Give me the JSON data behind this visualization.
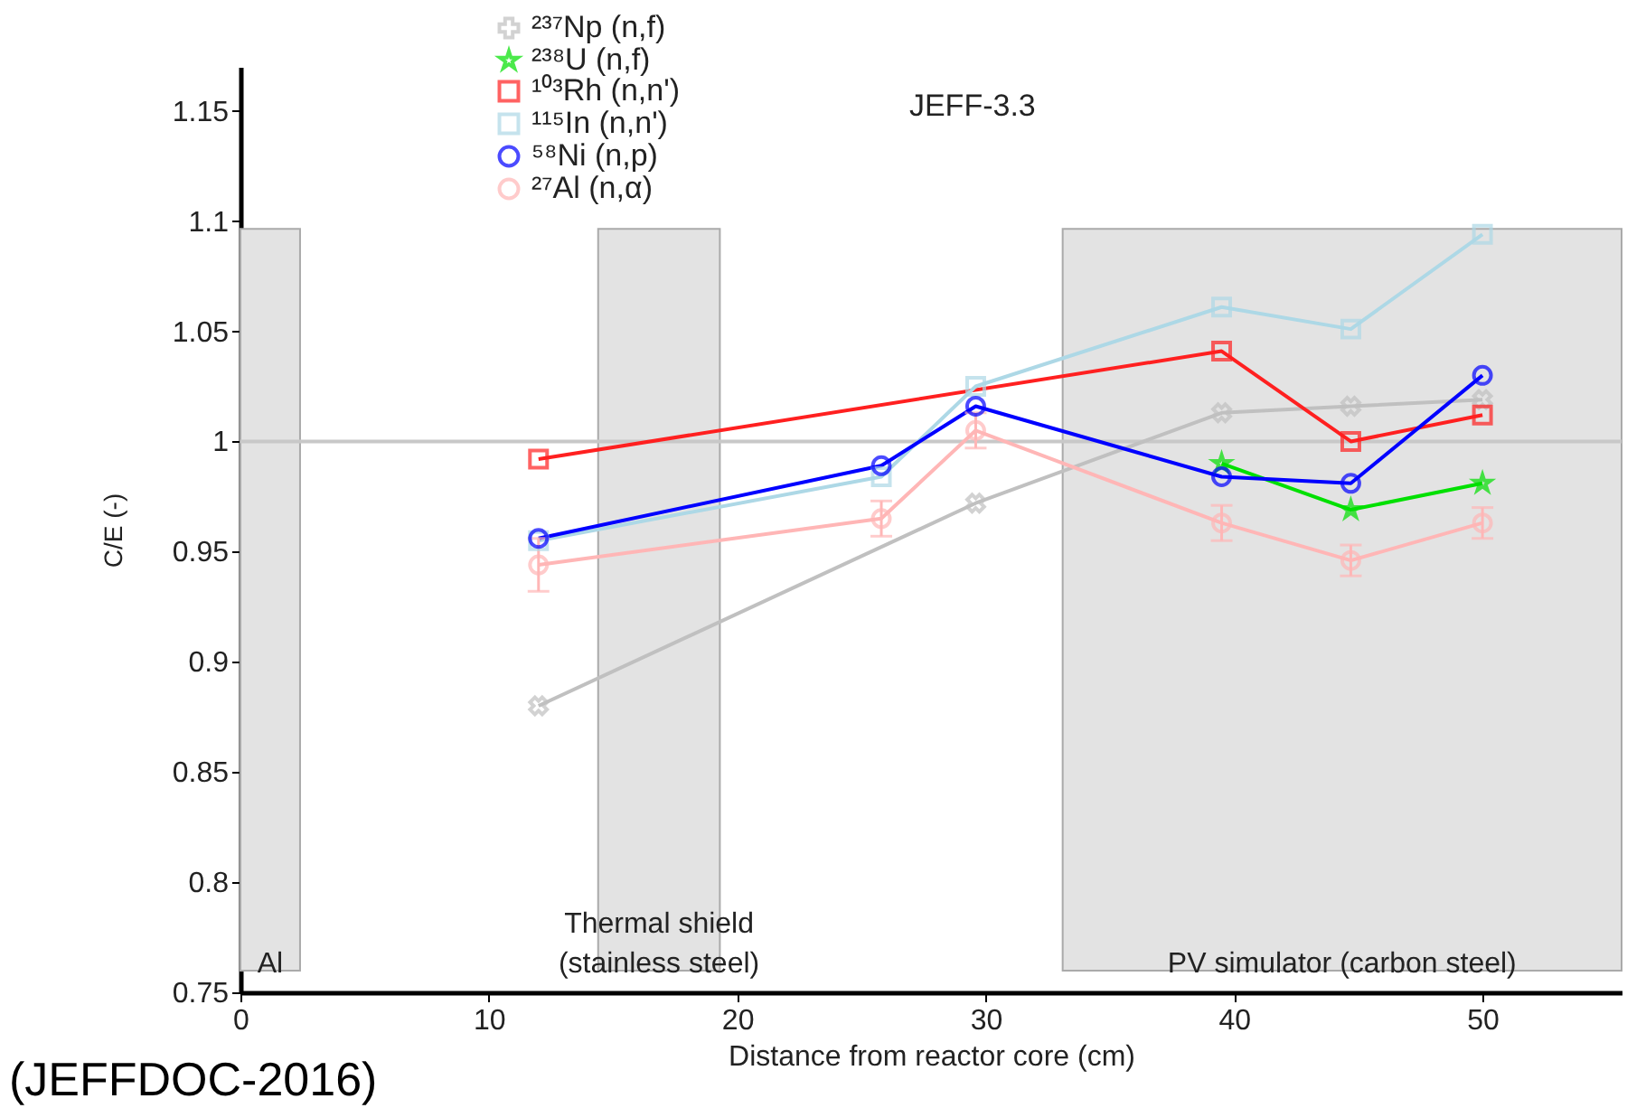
{
  "chart_data": {
    "type": "line",
    "title": "JEFF-3.3",
    "xlabel": "Distance from reactor core (cm)",
    "ylabel": "C/E (-)",
    "xlim": [
      0,
      55.6
    ],
    "xticks": [
      0,
      10,
      20,
      30,
      40,
      50
    ],
    "ylim": [
      0.75,
      1.17
    ],
    "yticks": [
      0.75,
      0.8,
      0.85,
      0.9,
      0.95,
      1,
      1.05,
      1.1,
      1.15
    ],
    "grid": false,
    "legend": "top left",
    "line_style": "solid",
    "series": [
      {
        "name": "²³⁷Np (n,f)",
        "color": "#c0c0c0",
        "marker": "cross",
        "x": [
          12,
          29.6,
          39.5,
          44.7,
          50
        ],
        "values": [
          0.88,
          0.972,
          1.013,
          1.016,
          1.019
        ]
      },
      {
        "name": "²³⁸U (n,f)",
        "color": "#00e000",
        "marker": "star",
        "x": [
          39.5,
          44.7,
          50
        ],
        "values": [
          0.99,
          0.969,
          0.981
        ]
      },
      {
        "name": "¹⁰³Rh (n,n')",
        "color": "#ff2020",
        "marker": "square",
        "x": [
          12,
          39.5,
          44.7,
          50
        ],
        "values": [
          0.992,
          1.041,
          1.0,
          1.012
        ]
      },
      {
        "name": "¹¹⁵In (n,n')",
        "color": "#add8e6",
        "marker": "square",
        "x": [
          12,
          25.8,
          29.6,
          39.5,
          44.7,
          50
        ],
        "values": [
          0.955,
          0.984,
          1.025,
          1.061,
          1.051,
          1.094
        ]
      },
      {
        "name": "⁵⁸Ni (n,p)",
        "color": "#0000ff",
        "marker": "circle",
        "x": [
          12,
          25.8,
          29.6,
          39.5,
          44.7,
          50
        ],
        "values": [
          0.956,
          0.989,
          1.016,
          0.984,
          0.981,
          1.03
        ]
      },
      {
        "name": "²⁷Al (n,α)",
        "color": "#ffb6b6",
        "marker": "circle",
        "x": [
          12,
          25.8,
          29.6,
          39.5,
          44.7,
          50
        ],
        "values": [
          0.944,
          0.965,
          1.005,
          0.963,
          0.946,
          0.963
        ],
        "errors": [
          0.012,
          0.008,
          0.008,
          0.008,
          0.007,
          0.007
        ]
      }
    ],
    "ref_lines": [
      {
        "axis": "y",
        "value": 1,
        "color": "#c8c8c8"
      }
    ],
    "bands": [
      {
        "axis": "x",
        "from": 0,
        "to": 2.4,
        "label": "Al",
        "color": "#e3e3e3"
      },
      {
        "axis": "x",
        "from": 14.4,
        "to": 19.3,
        "label": "Thermal shield\n(stainless steel)",
        "color": "#e3e3e3"
      },
      {
        "axis": "x",
        "from": 33.1,
        "to": 55.6,
        "label": "PV simulator (carbon steel)",
        "color": "#e3e3e3"
      }
    ],
    "annotations": [
      "(JEFFDOC-2016)"
    ]
  }
}
